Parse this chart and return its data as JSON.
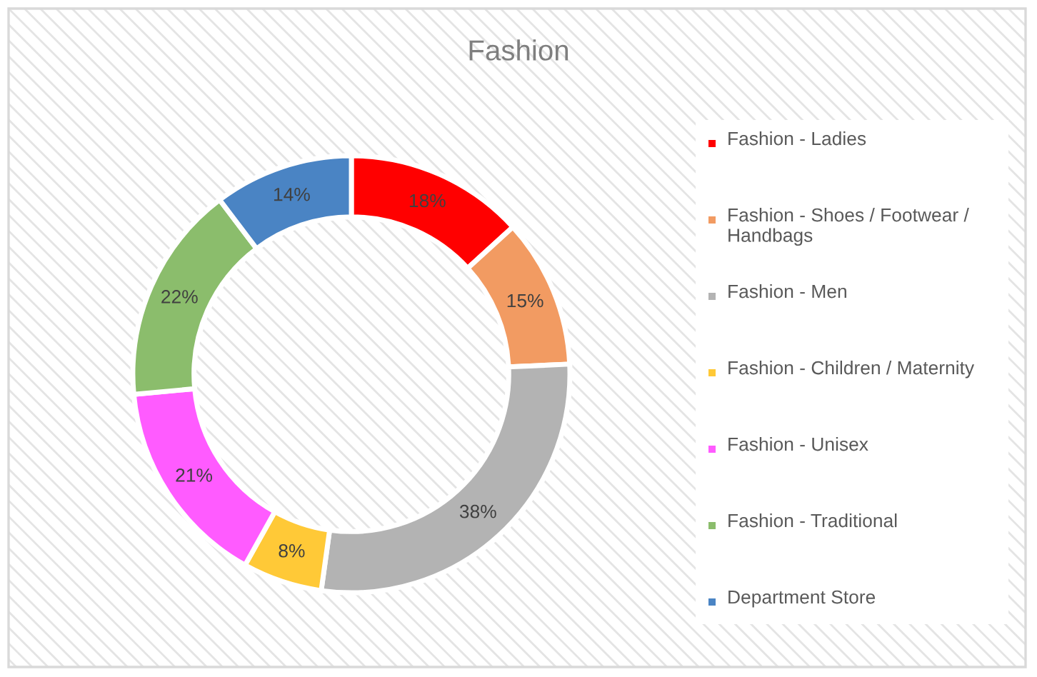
{
  "chart_data": {
    "type": "donut",
    "title": "Fashion",
    "categories": [
      "Fashion - Ladies",
      "Fashion - Shoes / Footwear / Handbags",
      "Fashion - Men",
      "Fashion - Children / Maternity",
      "Fashion - Unisex",
      "Fashion - Traditional",
      "Department Store"
    ],
    "values": [
      18,
      15,
      38,
      8,
      21,
      22,
      14
    ],
    "colors": [
      "#ff0000",
      "#f29b62",
      "#b3b3b3",
      "#ffc937",
      "#ff5bff",
      "#8bbd6c",
      "#4a84c4"
    ],
    "value_labels": [
      "18%",
      "15%",
      "38%",
      "8%",
      "21%",
      "22%",
      "14%"
    ],
    "legend": "right"
  }
}
